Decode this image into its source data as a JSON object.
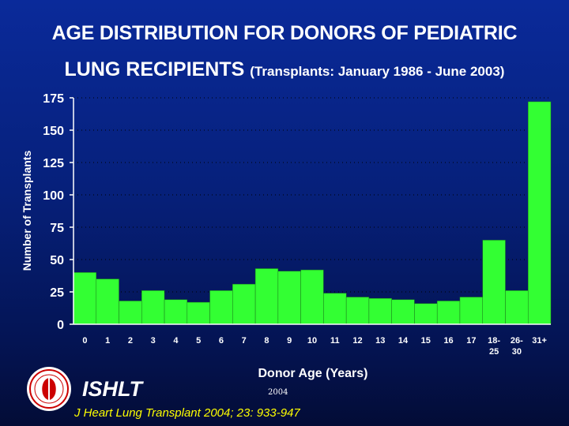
{
  "title": {
    "line1": "AGE DISTRIBUTION FOR DONORS OF PEDIATRIC",
    "line2_main": "LUNG RECIPIENTS",
    "line2_sub": "(Transplants: January 1986 - June 2003)"
  },
  "chart_data": {
    "type": "bar",
    "xlabel": "Donor Age (Years)",
    "ylabel": "Number of Transplants",
    "ylim": [
      0,
      175
    ],
    "yticks": [
      0,
      25,
      50,
      75,
      100,
      125,
      150,
      175
    ],
    "grid": "dotted horizontal",
    "categories": [
      [
        "0"
      ],
      [
        "1"
      ],
      [
        "2"
      ],
      [
        "3"
      ],
      [
        "4"
      ],
      [
        "5"
      ],
      [
        "6"
      ],
      [
        "7"
      ],
      [
        "8"
      ],
      [
        "9"
      ],
      [
        "10"
      ],
      [
        "11"
      ],
      [
        "12"
      ],
      [
        "13"
      ],
      [
        "14"
      ],
      [
        "15"
      ],
      [
        "16"
      ],
      [
        "17"
      ],
      [
        "18-",
        "25"
      ],
      [
        "26-",
        "30"
      ],
      [
        "31+"
      ]
    ],
    "values": [
      40,
      35,
      18,
      26,
      19,
      17,
      26,
      31,
      43,
      41,
      42,
      24,
      21,
      20,
      19,
      16,
      18,
      21,
      65,
      26,
      172
    ],
    "bar_color": "#33ff33"
  },
  "footer": {
    "org": "ISHLT",
    "year": "2004",
    "citation": "J Heart Lung Transplant 2004; 23: 933-947"
  }
}
